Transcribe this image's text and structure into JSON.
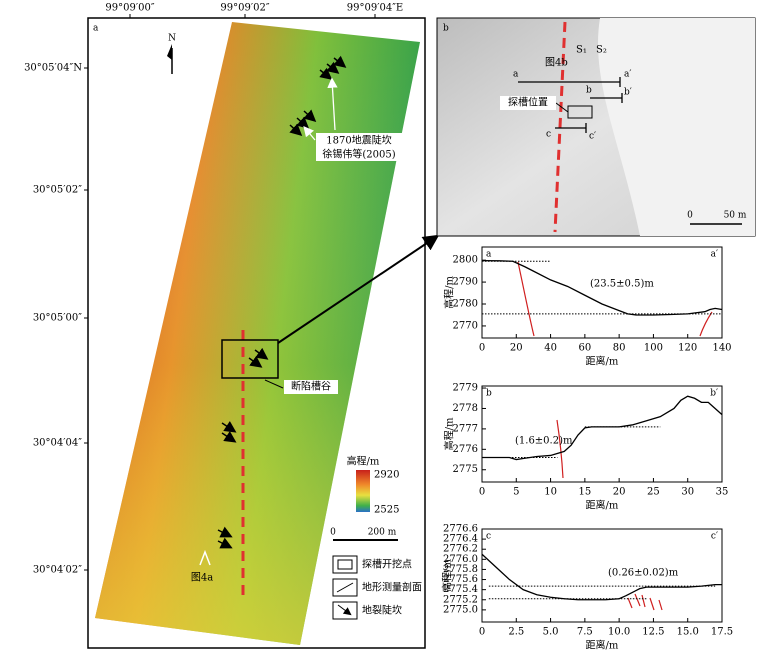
{
  "map_a": {
    "panel": "a",
    "lon_ticks": [
      "99°09′00″",
      "99°09′02″",
      "99°09′04″E"
    ],
    "lat_ticks": [
      "30°05′04″N",
      "30°05′02″",
      "30°05′00″",
      "30°04′04″",
      "30°04′02″"
    ],
    "north": "N",
    "scarp_note": [
      "1870地震陡坎",
      "徐锡伟等(2005)"
    ],
    "valley": "断陷槽谷",
    "fig_ref": "图4a",
    "elevation": {
      "title": "高程/m",
      "max": 2920,
      "min": 2525
    },
    "scale": [
      "0",
      "200 m"
    ],
    "legend": [
      "探槽开挖点",
      "地形测量剖面",
      "地裂陡坎"
    ]
  },
  "map_b": {
    "panel": "b",
    "fig_ref": "图4b",
    "scarps": [
      "S₁",
      "S₂"
    ],
    "profile_ends": [
      "a",
      "a′",
      "b",
      "b′",
      "c",
      "c′"
    ],
    "trench": "探槽位置",
    "scale": [
      "0",
      "50 m"
    ]
  },
  "chart_data": [
    {
      "type": "line",
      "start_label": "a",
      "end_label": "a′",
      "xlabel": "距离/m",
      "ylabel": "高程/m",
      "annotation": "(23.5±0.5)m",
      "color": "#000000",
      "x": [
        0,
        10,
        18,
        25,
        30,
        40,
        50,
        60,
        70,
        80,
        85,
        90,
        100,
        110,
        120,
        125,
        130,
        133,
        136,
        140
      ],
      "values": [
        2799.8,
        2799.7,
        2799.5,
        2797,
        2795,
        2791,
        2788,
        2784,
        2780,
        2777,
        2775.5,
        2775,
        2775,
        2775.2,
        2775.5,
        2776,
        2776.5,
        2777.5,
        2778,
        2777.5
      ],
      "reference_lines": [
        {
          "y": 2799.5,
          "x": [
            0,
            40
          ]
        },
        {
          "y": 2775.5,
          "x": [
            0,
            140
          ]
        }
      ],
      "xlim": [
        0,
        140
      ],
      "xticks": [
        0,
        20,
        40,
        60,
        80,
        100,
        120,
        140
      ],
      "ylim": [
        2764.5,
        2806
      ],
      "yticks": [
        2770,
        2780,
        2790,
        2800
      ]
    },
    {
      "type": "line",
      "start_label": "b",
      "end_label": "b′",
      "xlabel": "距离/m",
      "ylabel": "高程/m",
      "annotation": "(1.6±0.2)m",
      "color": "#000000",
      "x": [
        0,
        2,
        4,
        5,
        6,
        8,
        10,
        12,
        13,
        14,
        15,
        16,
        18,
        20,
        22,
        24,
        26,
        28,
        29,
        30,
        31,
        32,
        33,
        34,
        35
      ],
      "values": [
        2775.6,
        2775.6,
        2775.6,
        2775.5,
        2775.55,
        2775.65,
        2775.7,
        2775.9,
        2776.2,
        2776.7,
        2777.05,
        2777.1,
        2777.1,
        2777.1,
        2777.2,
        2777.4,
        2777.6,
        2778,
        2778.4,
        2778.6,
        2778.5,
        2778.3,
        2778.3,
        2778,
        2777.7
      ],
      "reference_lines": [
        {
          "y": 2777.1,
          "x": [
            15,
            26
          ]
        },
        {
          "y": 2775.6,
          "x": [
            0,
            11
          ]
        }
      ],
      "xlim": [
        0,
        35
      ],
      "xticks": [
        0,
        5,
        10,
        15,
        20,
        25,
        30,
        35
      ],
      "ylim": [
        2774.4,
        2779.1
      ],
      "yticks": [
        2775,
        2776,
        2777,
        2778,
        2779
      ]
    },
    {
      "type": "line",
      "start_label": "c",
      "end_label": "c′",
      "xlabel": "距离/m",
      "ylabel": "高程/m",
      "annotation": "(0.26±0.02)m",
      "color": "#000000",
      "x": [
        0,
        1,
        2,
        3,
        4,
        5,
        6,
        7,
        8,
        9,
        10,
        10.5,
        11,
        11.5,
        12,
        13,
        14,
        15,
        16,
        17,
        17.5
      ],
      "values": [
        2776.1,
        2775.85,
        2775.6,
        2775.4,
        2775.3,
        2775.25,
        2775.22,
        2775.2,
        2775.2,
        2775.2,
        2775.22,
        2775.28,
        2775.35,
        2775.42,
        2775.45,
        2775.45,
        2775.45,
        2775.45,
        2775.47,
        2775.5,
        2775.5
      ],
      "reference_lines": [
        {
          "y": 2775.47,
          "x": [
            0.5,
            17
          ]
        },
        {
          "y": 2775.22,
          "x": [
            0.5,
            12
          ]
        }
      ],
      "xlim": [
        0,
        17.5
      ],
      "xticks": [
        0,
        2.5,
        {
          "value": 5,
          "label": "5.0"
        },
        7.5,
        {
          "value": 10,
          "label": "10.0"
        },
        12.5,
        {
          "value": 15,
          "label": "15.0"
        },
        17.5
      ],
      "ylim": [
        2774.76,
        2776.6
      ],
      "yticks": [
        {
          "value": 2775,
          "label": "2775.0"
        },
        2775.2,
        2775.4,
        2775.6,
        2775.8,
        {
          "value": 2776,
          "label": "2776.0"
        },
        2776.2,
        2776.4,
        2776.6
      ]
    }
  ]
}
